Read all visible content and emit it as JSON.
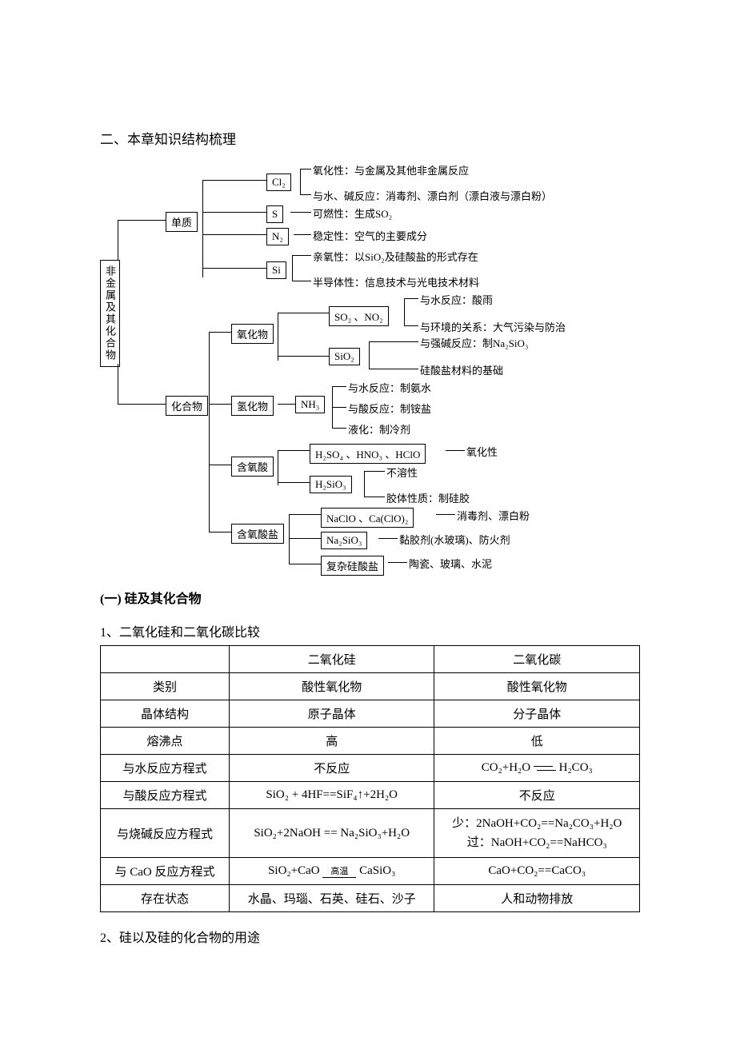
{
  "heading": "二、本章知识结构梳理",
  "diagram": {
    "root": "非金属及其化合物",
    "main_nodes": {
      "danzhi": "单质",
      "huahewu": "化合物"
    },
    "elements": {
      "cl2": "Cl₂",
      "s": "S",
      "n2": "N₂",
      "si": "Si"
    },
    "el_labels": {
      "cl2a": "氧化性：与金属及其他非金属反应",
      "cl2b": "与水、碱反应：消毒剂、漂白剂（漂白液与漂白粉）",
      "s1": "可燃性：生成SO₂",
      "n21": "稳定性：空气的主要成分",
      "si1": "亲氧性：以SiO₂及硅酸盐的形式存在",
      "si2": "半导体性：信息技术与光电技术材料"
    },
    "compound_nodes": {
      "yanghuawu": "氧化物",
      "qinghuawu": "氢化物",
      "hanyangsuan": "含氧酸",
      "hanyangsuanyan": "含氧酸盐"
    },
    "ox_nodes": {
      "so2no2": "SO₂ 、NO₂",
      "sio2": "SiO₂"
    },
    "ox_labels": {
      "a": "与水反应：酸雨",
      "b": "与环境的关系：大气污染与防治",
      "c": "与强碱反应：制Na₂SiO₃",
      "d": "硅酸盐材料的基础"
    },
    "hy_nodes": {
      "nh3": "NH₃"
    },
    "hy_labels": {
      "a": "与水反应：制氨水",
      "b": "与酸反应：制铵盐",
      "c": "液化：制冷剂"
    },
    "acid_nodes": {
      "strong": "H₂SO₄ 、HNO₃ 、HClO",
      "h2sio3": "H₂SiO₃"
    },
    "acid_labels": {
      "a": "氧化性",
      "b": "不溶性",
      "c": "胶体性质：制硅胶"
    },
    "salt_nodes": {
      "naclo": "NaClO 、Ca(ClO)₂",
      "na2sio3": "Na₂SiO₃",
      "complex": "复杂硅酸盐"
    },
    "salt_labels": {
      "a": "消毒剂、漂白粉",
      "b": "黏胶剂(水玻璃)、防火剂",
      "c": "陶瓷、玻璃、水泥"
    }
  },
  "sub1": "(一) 硅及其化合物",
  "sub1_1": "1、二氧化硅和二氧化碳比较",
  "table": {
    "headers": [
      "",
      "二氧化硅",
      "二氧化碳"
    ],
    "rows": [
      {
        "h": "类别",
        "a": "酸性氧化物",
        "b": "酸性氧化物"
      },
      {
        "h": "晶体结构",
        "a": "原子晶体",
        "b": "分子晶体"
      },
      {
        "h": "熔沸点",
        "a": "高",
        "b": "低"
      },
      {
        "h": "与水反应方程式",
        "a": "不反应",
        "b_html": "CO₂+H₂O <span class='dbl-arrow'></span> H₂CO₃"
      },
      {
        "h": "与酸反应方程式",
        "a_html": "SiO₂ + 4HF==SiF₄↑+2H₂O",
        "b": "不反应"
      },
      {
        "h": "与烧碱反应方程式",
        "a_html": "SiO₂+2NaOH == Na₂SiO₃+H₂O",
        "b_html": "<div class='eq-row'>少：2NaOH+CO₂==Na₂CO₃+H₂O</div><div class='eq-row'>过：NaOH+CO₂==NaHCO₃</div>"
      },
      {
        "h": "与 CaO 反应方程式",
        "a_html": "SiO₂+CaO <span class='over-text'>高温</span> CaSiO₃",
        "b_html": "CaO+CO₂==CaCO₃"
      },
      {
        "h": "存在状态",
        "a": "水晶、玛瑙、石英、硅石、沙子",
        "b": "人和动物排放"
      }
    ]
  },
  "sub1_2": "2、硅以及硅的化合物的用途",
  "colors": {
    "text": "#000000",
    "border": "#000000",
    "background": "#ffffff"
  }
}
